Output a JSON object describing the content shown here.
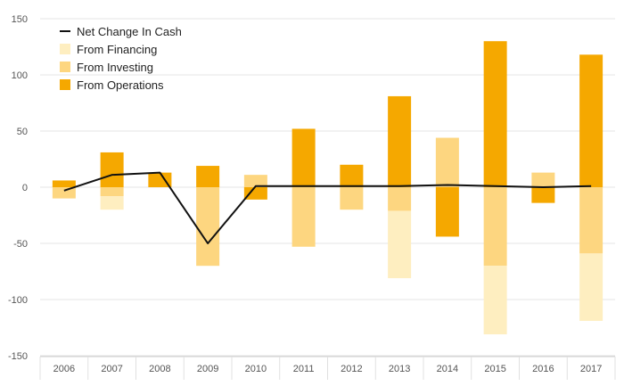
{
  "chart_data": {
    "type": "bar",
    "stacked": true,
    "categories": [
      "2006",
      "2007",
      "2008",
      "2009",
      "2010",
      "2011",
      "2012",
      "2013",
      "2014",
      "2015",
      "2016",
      "2017"
    ],
    "series": [
      {
        "name": "From Operations",
        "color": "#f5a800",
        "values": [
          6,
          31,
          13,
          19,
          -11,
          52,
          20,
          81,
          -44,
          130,
          -14,
          118
        ]
      },
      {
        "name": "From Investing",
        "color": "#fdd680",
        "values": [
          -10,
          -8,
          0,
          -70,
          11,
          -53,
          -20,
          -21,
          44,
          -70,
          13,
          -59
        ]
      },
      {
        "name": "From Financing",
        "color": "#feeec0",
        "values": [
          0,
          -12,
          0,
          0,
          0,
          0,
          0,
          -60,
          0,
          -61,
          0,
          -60
        ]
      },
      {
        "name": "Net Change In Cash",
        "type": "line",
        "color": "#111111",
        "values": [
          -3,
          11,
          13,
          -50,
          1,
          1,
          1,
          1,
          2,
          1,
          0,
          1
        ]
      }
    ],
    "yticks": [
      150,
      100,
      50,
      0,
      -50,
      -100,
      -150
    ],
    "ylim": [
      -150,
      150
    ],
    "grid": true,
    "legend": {
      "position": "top-left",
      "entries": [
        "Net Change In Cash",
        "From Financing",
        "From Investing",
        "From Operations"
      ]
    }
  }
}
